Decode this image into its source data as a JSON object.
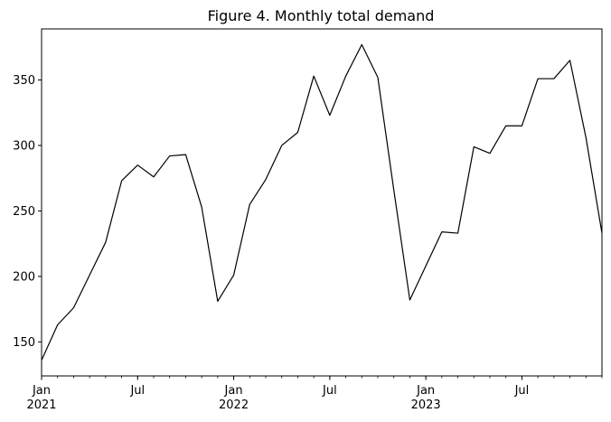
{
  "chart_data": {
    "type": "line",
    "title": "Figure 4. Monthly total demand",
    "xlabel": "",
    "ylabel": "",
    "grid": false,
    "x_range": [
      0,
      35
    ],
    "ylim": [
      124,
      389
    ],
    "series": [
      {
        "name": "Monthly total demand",
        "color": "#000000",
        "x": [
          "2021-01",
          "2021-02",
          "2021-03",
          "2021-04",
          "2021-05",
          "2021-06",
          "2021-07",
          "2021-08",
          "2021-09",
          "2021-10",
          "2021-11",
          "2021-12",
          "2022-01",
          "2022-02",
          "2022-03",
          "2022-04",
          "2022-05",
          "2022-06",
          "2022-07",
          "2022-08",
          "2022-09",
          "2022-10",
          "2022-11",
          "2022-12",
          "2023-01",
          "2023-02",
          "2023-03",
          "2023-04",
          "2023-05",
          "2023-06",
          "2023-07",
          "2023-08",
          "2023-09",
          "2023-10",
          "2023-11",
          "2023-12"
        ],
        "values": [
          136,
          163,
          176,
          201,
          226,
          273,
          285,
          276,
          292,
          293,
          253,
          181,
          201,
          255,
          274,
          300,
          310,
          353,
          323,
          353,
          377,
          352,
          266,
          182,
          208,
          234,
          233,
          299,
          294,
          315,
          315,
          351,
          351,
          365,
          306,
          233
        ]
      }
    ],
    "y_ticks": [
      {
        "value": 150,
        "label": "150"
      },
      {
        "value": 200,
        "label": "200"
      },
      {
        "value": 250,
        "label": "250"
      },
      {
        "value": 300,
        "label": "300"
      },
      {
        "value": 350,
        "label": "350"
      }
    ],
    "x_major_ticks": [
      {
        "index": 0,
        "label": "Jan",
        "year": "2021"
      },
      {
        "index": 6,
        "label": "Jul",
        "year": ""
      },
      {
        "index": 12,
        "label": "Jan",
        "year": "2022"
      },
      {
        "index": 18,
        "label": "Jul",
        "year": ""
      },
      {
        "index": 24,
        "label": "Jan",
        "year": "2023"
      },
      {
        "index": 30,
        "label": "Jul",
        "year": ""
      }
    ]
  }
}
